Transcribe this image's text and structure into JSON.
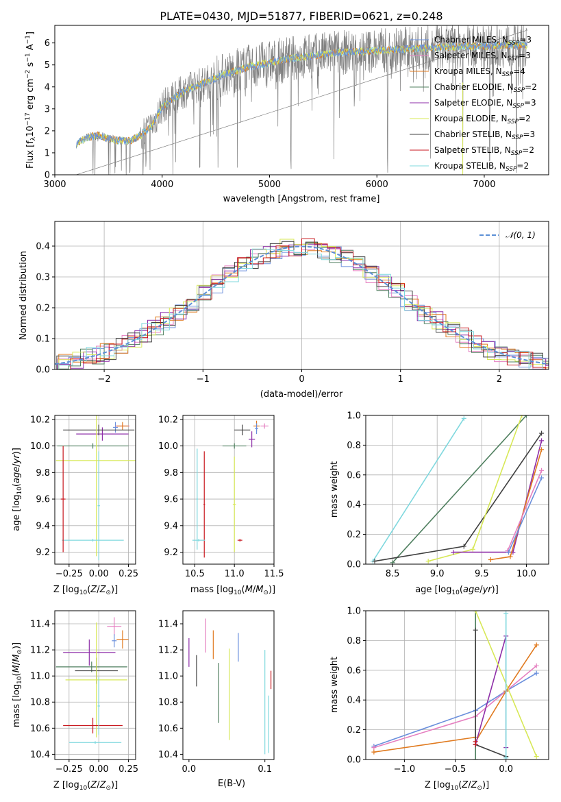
{
  "colors": {
    "Chabrier MILES": "#6a8fdc",
    "Salpeter MILES": "#e57fc0",
    "Kroupa MILES": "#e07a1f",
    "Chabrier ELODIE": "#4f7f5f",
    "Salpeter ELODIE": "#8e2ea8",
    "Kroupa ELODIE": "#d7e856",
    "Chabrier STELIB": "#404040",
    "Salpeter STELIB": "#c8161d",
    "Kroupa STELIB": "#7fd8de",
    "data": "#808080",
    "normal": "#5b8fd6"
  },
  "chart_data": [
    {
      "id": "spectrum",
      "type": "line",
      "title": "PLATE=0430, MJD=51877, FIBERID=0621, z=0.248",
      "xlabel": "wavelength [Angstrom, rest frame]",
      "ylabel": "Flux [f",
      "xlim": [
        3000,
        7600
      ],
      "ylim": [
        0,
        6.8
      ],
      "xticks": [
        "3000",
        "4000",
        "5000",
        "6000",
        "7000"
      ],
      "yticks": [
        "0",
        "1",
        "2",
        "3",
        "4",
        "5",
        "6"
      ],
      "legend_position": "top-right",
      "legend": [
        {
          "name": "Chabrier MILES",
          "nssp": "3"
        },
        {
          "name": "Salpeter MILES",
          "nssp": "3"
        },
        {
          "name": "Kroupa MILES",
          "nssp": "4"
        },
        {
          "name": "Chabrier ELODIE",
          "nssp": "2"
        },
        {
          "name": "Salpeter ELODIE",
          "nssp": "3"
        },
        {
          "name": "Kroupa ELODIE",
          "nssp": "2"
        },
        {
          "name": "Chabrier STELIB",
          "nssp": "3"
        },
        {
          "name": "Salpeter STELIB",
          "nssp": "2"
        },
        {
          "name": "Kroupa STELIB",
          "nssp": "2"
        }
      ],
      "continuum": [
        [
          3200,
          1.4
        ],
        [
          3300,
          1.7
        ],
        [
          3400,
          1.8
        ],
        [
          3500,
          1.65
        ],
        [
          3600,
          1.55
        ],
        [
          3700,
          1.55
        ],
        [
          3800,
          1.8
        ],
        [
          3900,
          2.2
        ],
        [
          4000,
          3.1
        ],
        [
          4200,
          3.8
        ],
        [
          4400,
          4.2
        ],
        [
          4600,
          4.6
        ],
        [
          4800,
          4.9
        ],
        [
          5000,
          5.1
        ],
        [
          5200,
          5.3
        ],
        [
          5400,
          5.4
        ],
        [
          5600,
          5.55
        ],
        [
          5800,
          5.6
        ],
        [
          6000,
          5.65
        ],
        [
          6200,
          5.7
        ],
        [
          6400,
          5.75
        ],
        [
          6600,
          5.8
        ],
        [
          6800,
          5.85
        ],
        [
          7000,
          5.85
        ],
        [
          7200,
          5.9
        ],
        [
          7400,
          5.9
        ]
      ]
    },
    {
      "id": "residuals",
      "type": "histogram",
      "xlabel": "(data-model)/error",
      "ylabel": "Normed distribution",
      "xlim": [
        -2.5,
        2.5
      ],
      "ylim": [
        0,
        0.48
      ],
      "xticks": [
        "−2",
        "−1",
        "0",
        "1",
        "2"
      ],
      "yticks": [
        "0.0",
        "0.1",
        "0.2",
        "0.3",
        "0.4"
      ],
      "grid": true,
      "legend_position": "top-right",
      "reference": "𝒩(0, 1)"
    },
    {
      "id": "age-Z",
      "type": "errorbar",
      "xlabel": "Z [log",
      "ylabel": "age  [log",
      "xlim": [
        -0.37,
        0.31
      ],
      "ylim": [
        9.11,
        10.23
      ],
      "xticks": [
        "−0.25",
        "0.00",
        "0.25"
      ],
      "yticks": [
        "9.2",
        "9.4",
        "9.6",
        "9.8",
        "10.0",
        "10.2"
      ],
      "grid": true,
      "points": [
        {
          "model": "Chabrier MILES",
          "x": 0.14,
          "xerr": 0.02,
          "y": 10.14,
          "yerr": 0.04
        },
        {
          "model": "Salpeter MILES",
          "x": 0.2,
          "xerr": 0.06,
          "y": 10.15,
          "yerr": 0.02
        },
        {
          "model": "Kroupa MILES",
          "x": 0.2,
          "xerr": 0.05,
          "y": 10.15,
          "yerr": 0.03
        },
        {
          "model": "Salpeter ELODIE",
          "x": 0.03,
          "xerr": 0.22,
          "y": 10.09,
          "yerr": 0.05
        },
        {
          "model": "Chabrier STELIB",
          "x": 0.0,
          "xerr": 0.3,
          "y": 10.12,
          "yerr": 0.04
        },
        {
          "model": "Chabrier ELODIE",
          "x": -0.05,
          "xerr": 0.3,
          "y": 10.0,
          "yerr": 0.02
        },
        {
          "model": "Kroupa ELODIE",
          "x": -0.02,
          "xerr": 0.34,
          "y": 9.89,
          "yerr": 0.72
        },
        {
          "model": "Kroupa STELIB",
          "x": -0.05,
          "xerr": 0.26,
          "y": 9.29,
          "yerr": 0.01
        },
        {
          "model": "Salpeter STELIB",
          "x": -0.3,
          "xerr": 0.02,
          "y": 9.6,
          "yerr": 0.4
        },
        {
          "model": "Kroupa STELIB",
          "x": 0.0,
          "xerr": 0.01,
          "y": 9.55,
          "yerr": 0.41
        }
      ]
    },
    {
      "id": "age-mass",
      "type": "errorbar",
      "xlabel": "mass [log",
      "ylabel": "",
      "xlim": [
        10.35,
        11.5
      ],
      "ylim": [
        9.11,
        10.23
      ],
      "xticks": [
        "10.5",
        "11.0",
        "11.5"
      ],
      "yticks": [
        "9.2",
        "9.4",
        "9.6",
        "9.8",
        "10.0",
        "10.2"
      ],
      "grid": true,
      "points": [
        {
          "model": "Chabrier STELIB",
          "x": 11.1,
          "xerr": 0.1,
          "y": 10.12,
          "yerr": 0.04
        },
        {
          "model": "Salpeter ELODIE",
          "x": 11.22,
          "xerr": 0.04,
          "y": 10.05,
          "yerr": 0.06
        },
        {
          "model": "Kroupa MILES",
          "x": 11.28,
          "xerr": 0.04,
          "y": 10.15,
          "yerr": 0.04
        },
        {
          "model": "Salpeter MILES",
          "x": 11.38,
          "xerr": 0.05,
          "y": 10.15,
          "yerr": 0.02
        },
        {
          "model": "Chabrier MILES",
          "x": 11.28,
          "xerr": 0.02,
          "y": 10.13,
          "yerr": 0.04
        },
        {
          "model": "Chabrier ELODIE",
          "x": 11.0,
          "xerr": 0.15,
          "y": 10.0,
          "yerr": 0.02
        },
        {
          "model": "Kroupa ELODIE",
          "x": 11.0,
          "xerr": 0.02,
          "y": 9.56,
          "yerr": 0.36
        },
        {
          "model": "Salpeter STELIB",
          "x": 10.62,
          "xerr": 0.01,
          "y": 9.56,
          "yerr": 0.4
        },
        {
          "model": "Salpeter STELIB",
          "x": 11.07,
          "xerr": 0.03,
          "y": 9.29,
          "yerr": 0.01
        },
        {
          "model": "Kroupa STELIB",
          "x": 10.55,
          "xerr": 0.08,
          "y": 9.29,
          "yerr": 0.01
        },
        {
          "model": "Kroupa STELIB",
          "x": 10.53,
          "xerr": 0.01,
          "y": 9.6,
          "yerr": 0.38
        }
      ]
    },
    {
      "id": "cumulative-age",
      "type": "line",
      "xlabel": "age  [log",
      "ylabel": "mass weight",
      "xlim": [
        8.2,
        10.25
      ],
      "ylim": [
        0,
        1
      ],
      "xticks": [
        "8.5",
        "9.0",
        "9.5",
        "10.0"
      ],
      "yticks": [
        "0.0",
        "0.2",
        "0.4",
        "0.6",
        "0.8",
        "1.0"
      ],
      "grid": true,
      "series": [
        {
          "model": "Kroupa STELIB",
          "x": [
            8.28,
            9.3
          ],
          "y": [
            0.02,
            0.98
          ]
        },
        {
          "model": "Chabrier ELODIE",
          "x": [
            8.5,
            10.0
          ],
          "y": [
            0.01,
            1.0
          ]
        },
        {
          "model": "Chabrier STELIB",
          "x": [
            8.3,
            9.3,
            10.17
          ],
          "y": [
            0.02,
            0.12,
            0.88
          ]
        },
        {
          "model": "Kroupa ELODIE",
          "x": [
            8.9,
            9.4,
            9.95
          ],
          "y": [
            0.02,
            0.1,
            1.0
          ]
        },
        {
          "model": "Salpeter ELODIE",
          "x": [
            9.18,
            9.85,
            10.17
          ],
          "y": [
            0.08,
            0.08,
            0.83
          ]
        },
        {
          "model": "Kroupa MILES",
          "x": [
            9.6,
            9.82,
            10.17
          ],
          "y": [
            0.03,
            0.05,
            0.77
          ]
        },
        {
          "model": "Salpeter MILES",
          "x": [
            9.79,
            10.17
          ],
          "y": [
            0.09,
            0.63
          ]
        },
        {
          "model": "Chabrier MILES",
          "x": [
            9.8,
            10.17
          ],
          "y": [
            0.08,
            0.58
          ]
        }
      ]
    },
    {
      "id": "mass-Z",
      "type": "errorbar",
      "xlabel": "Z [log",
      "ylabel": "mass [log",
      "xlim": [
        -0.37,
        0.31
      ],
      "ylim": [
        10.36,
        11.5
      ],
      "xticks": [
        "−0.25",
        "0.00",
        "0.25"
      ],
      "yticks": [
        "10.4",
        "10.6",
        "10.8",
        "11.0",
        "11.2",
        "11.4"
      ],
      "grid": true,
      "points": [
        {
          "model": "Salpeter MILES",
          "x": 0.13,
          "xerr": 0.06,
          "y": 11.38,
          "yerr": 0.07
        },
        {
          "model": "Kroupa MILES",
          "x": 0.2,
          "xerr": 0.05,
          "y": 11.28,
          "yerr": 0.07
        },
        {
          "model": "Chabrier MILES",
          "x": 0.13,
          "xerr": 0.02,
          "y": 11.27,
          "yerr": 0.05
        },
        {
          "model": "Salpeter ELODIE",
          "x": -0.08,
          "xerr": 0.22,
          "y": 11.18,
          "yerr": 0.1
        },
        {
          "model": "Chabrier ELODIE",
          "x": -0.06,
          "xerr": 0.3,
          "y": 11.07,
          "yerr": 0.04
        },
        {
          "model": "Chabrier STELIB",
          "x": -0.02,
          "xerr": 0.18,
          "y": 11.04,
          "yerr": 0.1
        },
        {
          "model": "Kroupa ELODIE",
          "x": -0.02,
          "xerr": 0.26,
          "y": 10.97,
          "yerr": 0.44
        },
        {
          "model": "Salpeter STELIB",
          "x": -0.05,
          "xerr": 0.25,
          "y": 10.62,
          "yerr": 0.06
        },
        {
          "model": "Kroupa STELIB",
          "x": -0.03,
          "xerr": 0.22,
          "y": 10.49,
          "yerr": 0.01
        },
        {
          "model": "Kroupa STELIB",
          "x": 0.0,
          "xerr": 0.01,
          "y": 10.77,
          "yerr": 0.22
        }
      ]
    },
    {
      "id": "mass-EBV",
      "type": "errorbar",
      "xlabel": "E(B-V)",
      "ylabel": "",
      "xlim": [
        -0.008,
        0.112
      ],
      "ylim": [
        10.36,
        11.5
      ],
      "xticks": [
        "0.0",
        "0.1"
      ],
      "yticks": [
        "10.4",
        "10.6",
        "10.8",
        "11.0",
        "11.2",
        "11.4"
      ],
      "grid": false,
      "points": [
        {
          "model": "Salpeter ELODIE",
          "x": 0.0,
          "y": 11.18,
          "yerr": 0.11
        },
        {
          "model": "Chabrier STELIB",
          "x": 0.01,
          "y": 11.04,
          "yerr": 0.12
        },
        {
          "model": "Salpeter MILES",
          "x": 0.022,
          "y": 11.31,
          "yerr": 0.13
        },
        {
          "model": "Kroupa MILES",
          "x": 0.032,
          "y": 11.24,
          "yerr": 0.11
        },
        {
          "model": "Chabrier ELODIE",
          "x": 0.039,
          "y": 10.87,
          "yerr": 0.23
        },
        {
          "model": "Kroupa ELODIE",
          "x": 0.053,
          "y": 10.86,
          "yerr": 0.35
        },
        {
          "model": "Chabrier MILES",
          "x": 0.065,
          "y": 11.22,
          "yerr": 0.11
        },
        {
          "model": "Kroupa STELIB",
          "x": 0.1,
          "y": 10.8,
          "yerr": 0.4
        },
        {
          "model": "Salpeter STELIB",
          "x": 0.108,
          "y": 10.97,
          "yerr": 0.07
        },
        {
          "model": "Kroupa STELIB",
          "x": 0.105,
          "y": 10.63,
          "yerr": 0.22
        }
      ]
    },
    {
      "id": "cumulative-Z",
      "type": "line",
      "xlabel": "Z [log",
      "ylabel": "mass weight",
      "xlim": [
        -1.38,
        0.42
      ],
      "ylim": [
        0,
        1
      ],
      "xticks": [
        "−1.0",
        "−0.5",
        "0.0"
      ],
      "yticks": [
        "0.0",
        "0.2",
        "0.4",
        "0.6",
        "0.8",
        "1.0"
      ],
      "grid": true,
      "series": [
        {
          "model": "Chabrier MILES",
          "x": [
            -1.3,
            -0.3,
            0.0,
            0.3
          ],
          "y": [
            0.09,
            0.33,
            0.46,
            0.58
          ]
        },
        {
          "model": "Salpeter MILES",
          "x": [
            -1.3,
            -0.3,
            0.0,
            0.3
          ],
          "y": [
            0.08,
            0.29,
            0.46,
            0.63
          ]
        },
        {
          "model": "Kroupa MILES",
          "x": [
            -1.3,
            -0.3,
            -0.3,
            0.0,
            0.3
          ],
          "y": [
            0.05,
            0.15,
            0.12,
            0.46,
            0.77
          ]
        },
        {
          "model": "Chabrier ELODIE",
          "x": [
            -0.3,
            -0.3
          ],
          "y": [
            0.0,
            1.0
          ]
        },
        {
          "model": "Salpeter ELODIE",
          "x": [
            -0.3,
            0.0,
            0.0
          ],
          "y": [
            0.1,
            0.83,
            0.08
          ]
        },
        {
          "model": "Kroupa ELODIE",
          "x": [
            -0.3,
            0.3
          ],
          "y": [
            1.0,
            0.02
          ]
        },
        {
          "model": "Chabrier STELIB",
          "x": [
            -0.3,
            -0.3,
            0.0
          ],
          "y": [
            0.87,
            0.1,
            0.02
          ]
        },
        {
          "model": "Salpeter STELIB",
          "x": [
            -0.3,
            -0.3
          ],
          "y": [
            0.1,
            0.12
          ]
        },
        {
          "model": "Kroupa STELIB",
          "x": [
            0.0,
            0.0
          ],
          "y": [
            0.01,
            0.98
          ]
        }
      ]
    }
  ]
}
